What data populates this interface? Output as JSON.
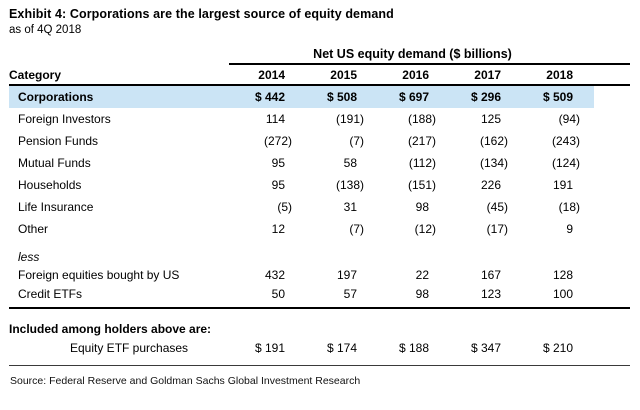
{
  "exhibit": {
    "title": "Exhibit 4: Corporations are the largest source of equity demand",
    "subtitle": "as of 4Q 2018",
    "source": "Source: Federal Reserve and Goldman Sachs Global Investment Research"
  },
  "table": {
    "group_header": "Net US equity demand ($ billions)",
    "category_header": "Category",
    "years": [
      "2014",
      "2015",
      "2016",
      "2017",
      "2018"
    ],
    "highlight_color": "#cbe4f5",
    "rows": [
      {
        "label": "Corporations",
        "values": [
          "$ 442",
          "$ 508",
          "$ 697",
          "$ 296",
          "$ 509"
        ],
        "highlighted": true
      },
      {
        "label": "Foreign Investors",
        "values": [
          "114",
          "(191)",
          "(188)",
          "125",
          "(94)"
        ]
      },
      {
        "label": "Pension Funds",
        "values": [
          "(272)",
          "(7)",
          "(217)",
          "(162)",
          "(243)"
        ]
      },
      {
        "label": "Mutual Funds",
        "values": [
          "95",
          "58",
          "(112)",
          "(134)",
          "(124)"
        ]
      },
      {
        "label": "Households",
        "values": [
          "95",
          "(138)",
          "(151)",
          "226",
          "191"
        ]
      },
      {
        "label": "Life Insurance",
        "values": [
          "(5)",
          "31",
          "98",
          "(45)",
          "(18)"
        ]
      },
      {
        "label": "Other",
        "values": [
          "12",
          "(7)",
          "(12)",
          "(17)",
          "9"
        ]
      }
    ],
    "less_section": {
      "label": "less",
      "rows": [
        {
          "label": "Foreign equities bought by US",
          "values": [
            "432",
            "197",
            "22",
            "167",
            "128"
          ]
        },
        {
          "label": "Credit ETFs",
          "values": [
            "50",
            "57",
            "98",
            "123",
            "100"
          ]
        }
      ]
    },
    "included_section": {
      "label": "Included among holders above are:",
      "rows": [
        {
          "label": "Equity ETF purchases",
          "values": [
            "$ 191",
            "$ 174",
            "$ 188",
            "$ 347",
            "$ 210"
          ]
        }
      ]
    }
  }
}
